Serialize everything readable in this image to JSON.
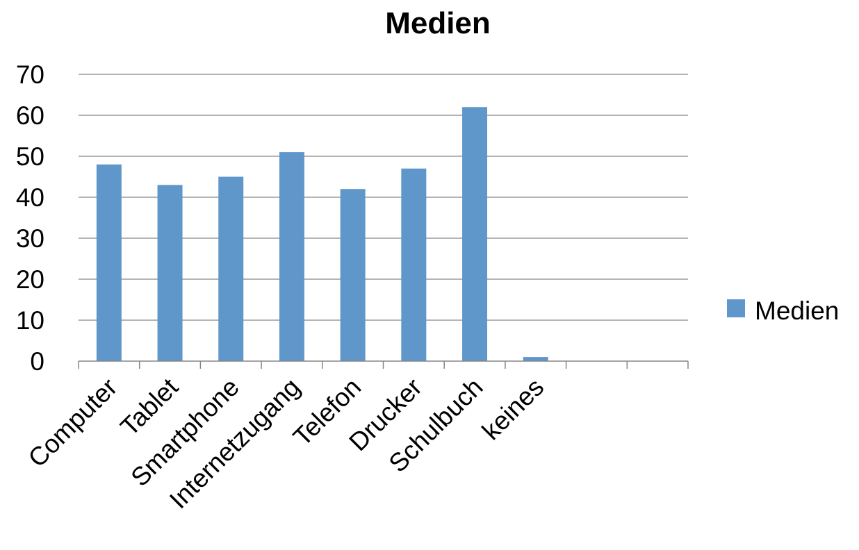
{
  "chart_data": {
    "type": "bar",
    "title": "Medien",
    "categories": [
      "Computer",
      "Tablet",
      "Smartphone",
      "Internetzugang",
      "Telefon",
      "Drucker",
      "Schulbuch",
      "keines",
      "",
      ""
    ],
    "series": [
      {
        "name": "Medien",
        "values": [
          48,
          43,
          45,
          51,
          42,
          47,
          62,
          1,
          null,
          null
        ],
        "color": "#6097cb"
      }
    ],
    "ylim": [
      0,
      70
    ],
    "yticks": [
      0,
      10,
      20,
      30,
      40,
      50,
      60,
      70
    ],
    "grid": true,
    "legend_position": "right"
  }
}
